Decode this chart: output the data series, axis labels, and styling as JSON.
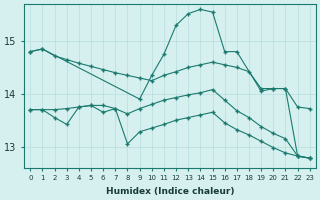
{
  "xlabel": "Humidex (Indice chaleur)",
  "background_color": "#d6f0f0",
  "line_color": "#1a7a6e",
  "grid_color": "#b8dcdc",
  "x_ticks": [
    0,
    1,
    2,
    3,
    4,
    5,
    6,
    7,
    8,
    9,
    10,
    11,
    12,
    13,
    14,
    15,
    16,
    17,
    18,
    19,
    20,
    21,
    22,
    23
  ],
  "y_ticks": [
    13,
    14,
    15
  ],
  "ylim": [
    12.6,
    15.7
  ],
  "xlim": [
    -0.5,
    23.5
  ],
  "lines": [
    {
      "x": [
        0,
        1,
        2,
        3,
        4,
        5,
        6,
        7,
        8,
        9,
        10,
        11,
        12,
        13,
        14,
        15,
        16,
        17,
        18,
        19,
        20,
        21,
        22,
        23
      ],
      "y": [
        14.8,
        14.85,
        14.72,
        14.65,
        14.58,
        14.52,
        14.46,
        14.4,
        14.35,
        14.3,
        14.25,
        14.35,
        14.42,
        14.5,
        14.55,
        14.6,
        14.55,
        14.5,
        14.42,
        14.1,
        14.1,
        14.1,
        13.75,
        13.72
      ]
    },
    {
      "x": [
        0,
        1,
        9,
        10,
        11,
        12,
        13,
        14,
        15,
        16,
        17,
        19,
        20,
        21,
        22,
        23
      ],
      "y": [
        14.8,
        14.85,
        13.9,
        14.35,
        14.75,
        15.3,
        15.52,
        15.6,
        15.55,
        14.8,
        14.8,
        14.05,
        14.1,
        14.1,
        12.82,
        12.78
      ]
    },
    {
      "x": [
        0,
        1,
        2,
        3,
        4,
        5,
        6,
        7,
        8,
        9,
        10,
        11,
        12,
        13,
        14,
        15,
        16,
        17,
        18,
        19,
        20,
        21,
        22,
        23
      ],
      "y": [
        13.7,
        13.7,
        13.7,
        13.72,
        13.75,
        13.78,
        13.78,
        13.72,
        13.62,
        13.72,
        13.8,
        13.88,
        13.93,
        13.98,
        14.02,
        14.08,
        13.88,
        13.68,
        13.55,
        13.38,
        13.25,
        13.15,
        12.82,
        12.78
      ]
    },
    {
      "x": [
        0,
        1,
        2,
        3,
        4,
        5,
        6,
        7,
        8,
        9,
        10,
        11,
        12,
        13,
        14,
        15,
        16,
        17,
        18,
        19,
        20,
        21,
        22,
        23
      ],
      "y": [
        13.7,
        13.7,
        13.55,
        13.42,
        13.75,
        13.78,
        13.65,
        13.72,
        13.05,
        13.28,
        13.35,
        13.42,
        13.5,
        13.55,
        13.6,
        13.65,
        13.45,
        13.32,
        13.22,
        13.1,
        12.98,
        12.88,
        12.82,
        12.78
      ]
    }
  ]
}
